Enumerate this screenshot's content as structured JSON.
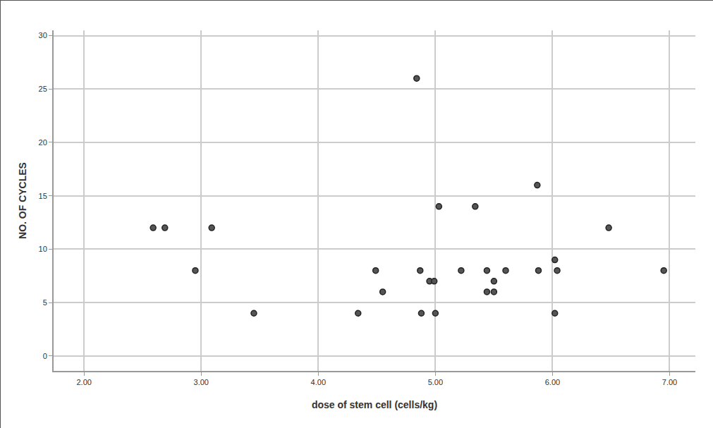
{
  "chart_data": {
    "type": "scatter",
    "x_label": "dose of stem cell (cells/kg)",
    "y_label": "NO. OF CYCLES",
    "x": [
      2.59,
      2.69,
      3.09,
      2.95,
      3.45,
      4.34,
      4.49,
      4.55,
      4.84,
      4.87,
      4.88,
      4.95,
      4.99,
      5.0,
      5.03,
      5.22,
      5.34,
      5.44,
      5.44,
      5.5,
      5.5,
      5.6,
      5.87,
      5.88,
      6.02,
      6.02,
      6.04,
      6.48,
      6.95
    ],
    "values": [
      12,
      12,
      12,
      8,
      4,
      4,
      8,
      6,
      26,
      8,
      4,
      7,
      7,
      4,
      14,
      8,
      14,
      8,
      6,
      7,
      6,
      8,
      16,
      8,
      9,
      4,
      8,
      12,
      8
    ],
    "color": "#555555",
    "marker": "circle",
    "xlim": [
      1.74,
      7.22
    ],
    "xticks": [
      {
        "value": 2,
        "label": "2.00"
      },
      {
        "value": 3,
        "label": "3.00"
      },
      {
        "value": 4,
        "label": "4.00"
      },
      {
        "value": 5,
        "label": "5.00"
      },
      {
        "value": 6,
        "label": "6.00"
      },
      {
        "value": 7,
        "label": "7.00"
      }
    ],
    "ylim": [
      -1.4,
      30.5
    ],
    "yticks": [
      0,
      5,
      10,
      15,
      20,
      25,
      30
    ],
    "grid": true
  }
}
